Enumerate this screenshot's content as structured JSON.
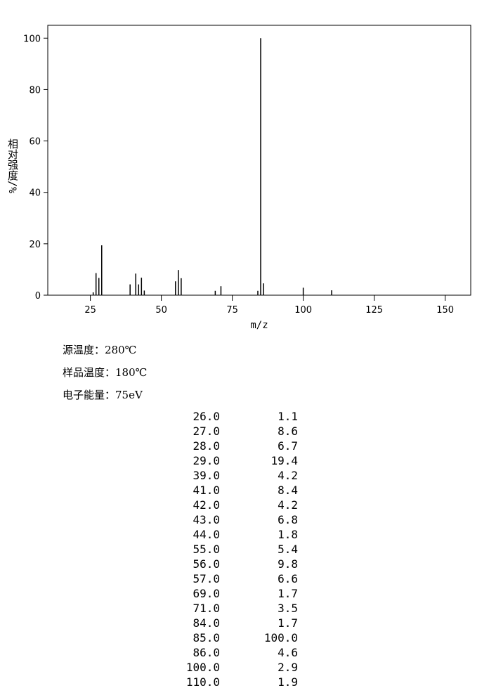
{
  "chart_data": {
    "type": "stem",
    "xlabel": "m/z",
    "ylabel": "相对强度/%",
    "x": [
      26,
      27,
      28,
      29,
      39,
      41,
      42,
      43,
      44,
      55,
      56,
      57,
      69,
      71,
      84,
      85,
      86,
      100,
      110
    ],
    "values": [
      1.1,
      8.6,
      6.7,
      19.4,
      4.2,
      8.4,
      4.2,
      6.8,
      1.8,
      5.4,
      9.8,
      6.6,
      1.7,
      3.5,
      1.7,
      100,
      4.6,
      2.9,
      1.9
    ],
    "color": "#000000",
    "xlim": [
      10,
      159
    ],
    "xticks": [
      25,
      50,
      75,
      100,
      125,
      150
    ],
    "ylim": [
      0,
      105
    ],
    "yticks": [
      0,
      20,
      40,
      60,
      80,
      100
    ]
  },
  "conditions": [
    "源温度：280℃",
    "样品温度：180℃",
    "电子能量：75eV"
  ],
  "table": {
    "rows": [
      [
        "26.0",
        "1.1"
      ],
      [
        "27.0",
        "8.6"
      ],
      [
        "28.0",
        "6.7"
      ],
      [
        "29.0",
        "19.4"
      ],
      [
        "39.0",
        "4.2"
      ],
      [
        "41.0",
        "8.4"
      ],
      [
        "42.0",
        "4.2"
      ],
      [
        "43.0",
        "6.8"
      ],
      [
        "44.0",
        "1.8"
      ],
      [
        "55.0",
        "5.4"
      ],
      [
        "56.0",
        "9.8"
      ],
      [
        "57.0",
        "6.6"
      ],
      [
        "69.0",
        "1.7"
      ],
      [
        "71.0",
        "3.5"
      ],
      [
        "84.0",
        "1.7"
      ],
      [
        "85.0",
        "100.0"
      ],
      [
        "86.0",
        "4.6"
      ],
      [
        "100.0",
        "2.9"
      ],
      [
        "110.0",
        "1.9"
      ]
    ]
  }
}
